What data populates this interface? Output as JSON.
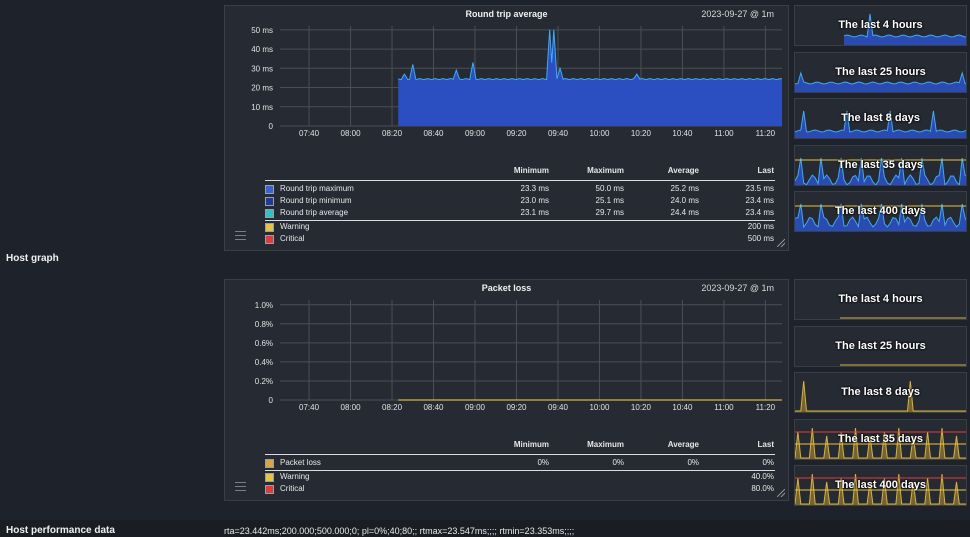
{
  "rows": {
    "host_graph_label": "Host graph",
    "host_perf_label": "Host performance data",
    "host_perf_value": "rta=23.442ms;200.000;500.000;0; pl=0%;40;80;; rtmax=23.547ms;;;; rtmin=23.353ms;;;;"
  },
  "colors": {
    "background": "#1e232b",
    "panel": "#262b33",
    "rta_fill": "#2b4fc0",
    "rta_line": "#3fa9f5",
    "warning": "#e8c341",
    "critical": "#e23b3b",
    "pl_line": "#d8b240"
  },
  "rta_graph": {
    "title": "Round trip average",
    "date": "2023-09-27 @ 1m",
    "legend_headers": {
      "minimum": "Minimum",
      "maximum": "Maximum",
      "average": "Average",
      "last": "Last"
    },
    "legend": [
      {
        "name": "Round trip maximum",
        "min": "23.3 ms",
        "max": "50.0 ms",
        "avg": "25.2 ms",
        "last": "23.5 ms",
        "color": "#3a63d0"
      },
      {
        "name": "Round trip minimum",
        "min": "23.0 ms",
        "max": "25.1 ms",
        "avg": "24.0 ms",
        "last": "23.4 ms",
        "color": "#1e3a9a"
      },
      {
        "name": "Round trip average",
        "min": "23.1 ms",
        "max": "29.7 ms",
        "avg": "24.4 ms",
        "last": "23.4 ms",
        "color": "#2bc3c3"
      }
    ],
    "thresholds": [
      {
        "name": "Warning",
        "value": "200 ms",
        "color": "#e8c341"
      },
      {
        "name": "Critical",
        "value": "500 ms",
        "color": "#e23b3b"
      }
    ]
  },
  "pl_graph": {
    "title": "Packet loss",
    "date": "2023-09-27 @ 1m",
    "legend_headers": {
      "minimum": "Minimum",
      "maximum": "Maximum",
      "average": "Average",
      "last": "Last"
    },
    "legend": [
      {
        "name": "Packet loss",
        "min": "0%",
        "max": "0%",
        "avg": "0%",
        "last": "0%",
        "color": "#d8a540"
      }
    ],
    "thresholds": [
      {
        "name": "Warning",
        "value": "40.0%",
        "color": "#e8c341"
      },
      {
        "name": "Critical",
        "value": "80.0%",
        "color": "#e23b3b"
      }
    ]
  },
  "rta_thumbs": [
    "The last 4 hours",
    "The last 25 hours",
    "The last 8 days",
    "The last 35 days",
    "The last 400 days"
  ],
  "pl_thumbs": [
    "The last 4 hours",
    "The last 25 hours",
    "The last 8 days",
    "The last 35 days",
    "The last 400 days"
  ],
  "chart_data": [
    {
      "type": "area",
      "title": "Round trip average",
      "x": [
        "07:40",
        "08:00",
        "08:20",
        "08:40",
        "09:00",
        "09:20",
        "09:40",
        "10:00",
        "10:20",
        "10:40",
        "11:00",
        "11:20"
      ],
      "yticks": [
        "0",
        "10 ms",
        "20 ms",
        "30 ms",
        "40 ms",
        "50 ms"
      ],
      "ylim": [
        0,
        52
      ],
      "xlim_minutes": [
        0,
        242
      ],
      "data_start_minute": 57,
      "series": [
        {
          "name": "Round trip average",
          "baseline": 24.4,
          "spikes": [
            [
              60,
              27
            ],
            [
              64,
              32
            ],
            [
              85,
              29
            ],
            [
              93,
              33
            ],
            [
              130,
              50
            ],
            [
              132,
              50
            ],
            [
              135,
              30
            ],
            [
              172,
              27
            ]
          ]
        }
      ],
      "grid": true
    },
    {
      "type": "line",
      "title": "Packet loss",
      "x": [
        "07:40",
        "08:00",
        "08:20",
        "08:40",
        "09:00",
        "09:20",
        "09:40",
        "10:00",
        "10:20",
        "10:40",
        "11:00",
        "11:20"
      ],
      "yticks": [
        "0",
        "0.2%",
        "0.4%",
        "0.6%",
        "0.8%",
        "1.0%"
      ],
      "ylim": [
        0,
        1.05
      ],
      "data_start_minute": 57,
      "series": [
        {
          "name": "Packet loss",
          "value": 0
        }
      ],
      "grid": true
    }
  ]
}
